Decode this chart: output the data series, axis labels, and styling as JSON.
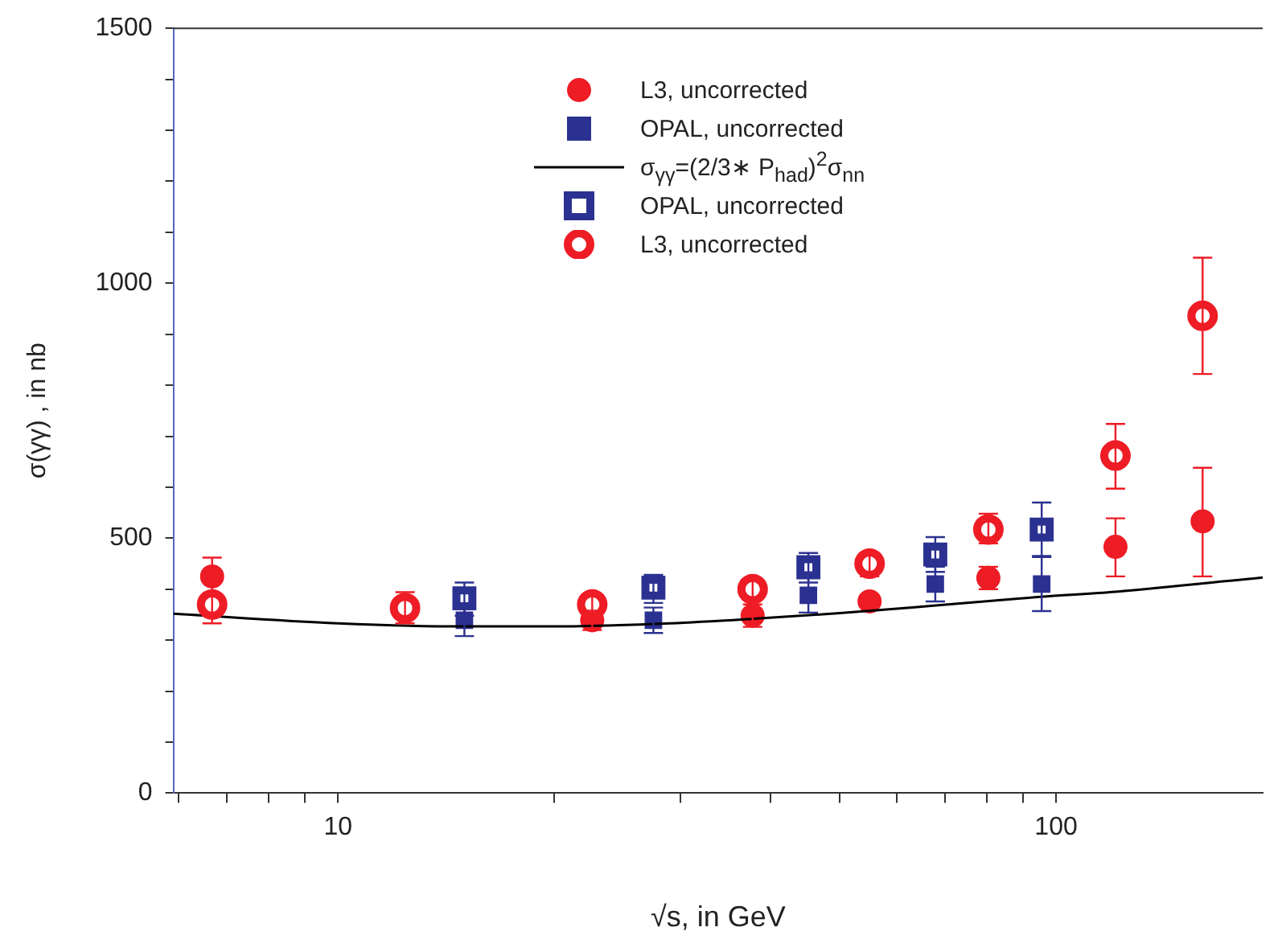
{
  "chart_data": {
    "type": "scatter",
    "xlabel": "√s, in GeV",
    "ylabel": "σ(γγ) , in nb",
    "log": "x",
    "xlim": [
      5.9,
      194
    ],
    "xticks": [
      {
        "value": 6,
        "label": null
      },
      {
        "value": 7,
        "label": null
      },
      {
        "value": 8,
        "label": null
      },
      {
        "value": 9,
        "label": null
      },
      10,
      {
        "value": 20,
        "label": null
      },
      {
        "value": 30,
        "label": null
      },
      {
        "value": 40,
        "label": null
      },
      {
        "value": 50,
        "label": null
      },
      {
        "value": 60,
        "label": null
      },
      {
        "value": 70,
        "label": null
      },
      {
        "value": 80,
        "label": null
      },
      {
        "value": 90,
        "label": null
      },
      100
    ],
    "ylim": [
      0,
      1500
    ],
    "yticks": [
      0,
      {
        "value": 100,
        "label": null
      },
      {
        "value": 200,
        "label": null
      },
      {
        "value": 300,
        "label": null
      },
      {
        "value": 400,
        "label": null
      },
      500,
      {
        "value": 600,
        "label": null
      },
      {
        "value": 700,
        "label": null
      },
      {
        "value": 800,
        "label": null
      },
      {
        "value": 900,
        "label": null
      },
      1000,
      {
        "value": 1100,
        "label": null
      },
      {
        "value": 1200,
        "label": null
      },
      {
        "value": 1300,
        "label": null
      },
      {
        "value": 1400,
        "label": null
      },
      1500
    ],
    "grid": false,
    "legend": "top right",
    "series": [
      {
        "name": "L3, uncorrected",
        "type": "scatter",
        "marker": "circle",
        "color": "#ee1c25",
        "x": [
          6.68,
          22.6,
          37.8,
          55.0,
          80.5,
          121,
          160
        ],
        "values": [
          425,
          339,
          348,
          376,
          422,
          483,
          533
        ],
        "errors": [
          37,
          19,
          22,
          null,
          22,
          [
            425,
            539
          ],
          [
            425,
            638
          ]
        ]
      },
      {
        "name": "OPAL, uncorrected",
        "type": "scatter",
        "marker": "square",
        "color": "#2b3190",
        "x": [
          15.0,
          27.5,
          45.2,
          67.9,
          95.5
        ],
        "values": [
          339,
          339,
          388,
          410,
          410
        ],
        "errors": [
          31,
          25,
          34,
          34,
          53
        ]
      },
      {
        "name": "σ$_{γγ}$=(2/3∗ P$_{had}$)$^{2}$σ$_{nn}$",
        "type": "line",
        "marker": "none",
        "line_style": "solid",
        "color": "#000000",
        "x": [
          5.9,
          10,
          15,
          20,
          29,
          38,
          50,
          68,
          95,
          121,
          194
        ],
        "values": [
          352,
          333,
          327,
          327,
          333,
          342,
          353,
          368,
          385,
          395,
          423
        ]
      },
      {
        "name": "OPAL, uncorrected",
        "type": "scatter",
        "marker": "square-dot",
        "color": "#2b3190",
        "x": [
          15.0,
          27.5,
          45.2,
          67.9,
          95.5
        ],
        "values": [
          382,
          403,
          443,
          468,
          517
        ],
        "errors": [
          [
            348,
            413
          ],
          [
            373,
            428
          ],
          [
            413,
            471
          ],
          [
            434,
            502
          ],
          [
            465,
            570
          ]
        ]
      },
      {
        "name": "L3, uncorrected",
        "type": "scatter",
        "marker": "circle-dot",
        "color": "#ee1c25",
        "x": [
          6.68,
          12.4,
          22.6,
          37.8,
          55.0,
          80.5,
          121,
          160
        ],
        "values": [
          370,
          363,
          370,
          400,
          450,
          517,
          662,
          936
        ],
        "errors": [
          [
            333,
            388
          ],
          [
            333,
            394
          ],
          [
            350,
            388
          ],
          [
            379,
            419
          ],
          [
            425,
            471
          ],
          [
            490,
            548
          ],
          [
            597,
            724
          ],
          [
            822,
            1050
          ]
        ]
      }
    ]
  }
}
